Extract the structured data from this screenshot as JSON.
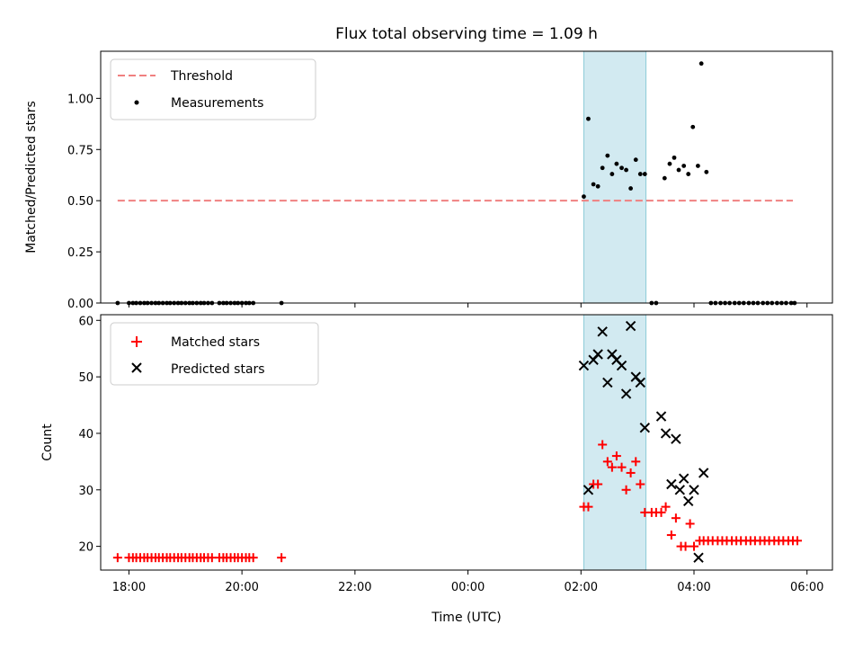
{
  "chart_data": [
    {
      "type": "scatter",
      "title": "Flux total observing time = 1.09 h",
      "xlabel": "",
      "ylabel": "Matched/Predicted stars",
      "x_unit": "hours since 17:00 UTC",
      "xlim": [
        0.5,
        13.45
      ],
      "ylim": [
        0,
        1.23
      ],
      "yticks": [
        0.0,
        0.25,
        0.5,
        0.75,
        1.0
      ],
      "ytick_labels": [
        "0.00",
        "0.25",
        "0.50",
        "0.75",
        "1.00"
      ],
      "grid": false,
      "legend": {
        "placement": "top-left",
        "entries": [
          "Threshold",
          "Measurements"
        ]
      },
      "shaded_span": {
        "x_start": 9.05,
        "x_end": 10.15,
        "color": "#add8e6"
      },
      "threshold": {
        "name": "Threshold",
        "y": 0.5,
        "x_start": 0.8,
        "x_end": 12.75,
        "color": "#f08080"
      },
      "series": [
        {
          "name": "Measurements",
          "color": "#000000",
          "points": [
            [
              0.8,
              0
            ],
            [
              1.0,
              0
            ],
            [
              1.07,
              0
            ],
            [
              1.13,
              0
            ],
            [
              1.2,
              0
            ],
            [
              1.27,
              0
            ],
            [
              1.33,
              0
            ],
            [
              1.4,
              0
            ],
            [
              1.47,
              0
            ],
            [
              1.53,
              0
            ],
            [
              1.6,
              0
            ],
            [
              1.67,
              0
            ],
            [
              1.73,
              0
            ],
            [
              1.8,
              0
            ],
            [
              1.87,
              0
            ],
            [
              1.93,
              0
            ],
            [
              2.0,
              0
            ],
            [
              2.07,
              0
            ],
            [
              2.13,
              0
            ],
            [
              2.2,
              0
            ],
            [
              2.27,
              0
            ],
            [
              2.33,
              0
            ],
            [
              2.4,
              0
            ],
            [
              2.47,
              0
            ],
            [
              2.6,
              0
            ],
            [
              2.67,
              0
            ],
            [
              2.73,
              0
            ],
            [
              2.8,
              0
            ],
            [
              2.87,
              0
            ],
            [
              2.93,
              0
            ],
            [
              3.0,
              0
            ],
            [
              3.07,
              0
            ],
            [
              3.13,
              0
            ],
            [
              3.2,
              0
            ],
            [
              3.7,
              0
            ],
            [
              9.05,
              0.52
            ],
            [
              9.13,
              0.9
            ],
            [
              9.22,
              0.58
            ],
            [
              9.3,
              0.57
            ],
            [
              9.38,
              0.66
            ],
            [
              9.47,
              0.72
            ],
            [
              9.55,
              0.63
            ],
            [
              9.63,
              0.68
            ],
            [
              9.72,
              0.66
            ],
            [
              9.8,
              0.65
            ],
            [
              9.88,
              0.56
            ],
            [
              9.97,
              0.7
            ],
            [
              10.05,
              0.63
            ],
            [
              10.13,
              0.63
            ],
            [
              10.25,
              0
            ],
            [
              10.33,
              0
            ],
            [
              10.48,
              0.61
            ],
            [
              10.57,
              0.68
            ],
            [
              10.65,
              0.71
            ],
            [
              10.73,
              0.65
            ],
            [
              10.82,
              0.67
            ],
            [
              10.9,
              0.63
            ],
            [
              10.98,
              0.86
            ],
            [
              11.07,
              0.67
            ],
            [
              11.13,
              1.17
            ],
            [
              11.22,
              0.64
            ],
            [
              11.3,
              0
            ],
            [
              11.38,
              0
            ],
            [
              11.47,
              0
            ],
            [
              11.55,
              0
            ],
            [
              11.63,
              0
            ],
            [
              11.72,
              0
            ],
            [
              11.8,
              0
            ],
            [
              11.88,
              0
            ],
            [
              11.97,
              0
            ],
            [
              12.05,
              0
            ],
            [
              12.13,
              0
            ],
            [
              12.22,
              0
            ],
            [
              12.3,
              0
            ],
            [
              12.38,
              0
            ],
            [
              12.47,
              0
            ],
            [
              12.55,
              0
            ],
            [
              12.63,
              0
            ],
            [
              12.72,
              0
            ],
            [
              12.78,
              0
            ]
          ]
        }
      ]
    },
    {
      "type": "scatter",
      "title": "",
      "xlabel": "Time (UTC)",
      "ylabel": "Count",
      "x_unit": "hours since 17:00 UTC",
      "xlim": [
        0.5,
        13.45
      ],
      "ylim": [
        15.8,
        61
      ],
      "yticks": [
        20,
        30,
        40,
        50,
        60
      ],
      "ytick_labels": [
        "20",
        "30",
        "40",
        "50",
        "60"
      ],
      "xticks": [
        1,
        3,
        5,
        7,
        9,
        11,
        13
      ],
      "xtick_labels": [
        "18:00",
        "20:00",
        "22:00",
        "00:00",
        "02:00",
        "04:00",
        "06:00"
      ],
      "grid": false,
      "legend": {
        "placement": "top-left",
        "entries": [
          "Matched stars",
          "Predicted stars"
        ]
      },
      "shaded_span": {
        "x_start": 9.05,
        "x_end": 10.15,
        "color": "#add8e6"
      },
      "series": [
        {
          "name": "Matched stars",
          "color": "#ff0000",
          "marker": "plus",
          "points": [
            [
              0.8,
              18
            ],
            [
              1.0,
              18
            ],
            [
              1.07,
              18
            ],
            [
              1.13,
              18
            ],
            [
              1.2,
              18
            ],
            [
              1.27,
              18
            ],
            [
              1.33,
              18
            ],
            [
              1.4,
              18
            ],
            [
              1.47,
              18
            ],
            [
              1.53,
              18
            ],
            [
              1.6,
              18
            ],
            [
              1.67,
              18
            ],
            [
              1.73,
              18
            ],
            [
              1.8,
              18
            ],
            [
              1.87,
              18
            ],
            [
              1.93,
              18
            ],
            [
              2.0,
              18
            ],
            [
              2.07,
              18
            ],
            [
              2.13,
              18
            ],
            [
              2.2,
              18
            ],
            [
              2.27,
              18
            ],
            [
              2.33,
              18
            ],
            [
              2.4,
              18
            ],
            [
              2.47,
              18
            ],
            [
              2.6,
              18
            ],
            [
              2.67,
              18
            ],
            [
              2.73,
              18
            ],
            [
              2.8,
              18
            ],
            [
              2.87,
              18
            ],
            [
              2.93,
              18
            ],
            [
              3.0,
              18
            ],
            [
              3.07,
              18
            ],
            [
              3.13,
              18
            ],
            [
              3.2,
              18
            ],
            [
              3.7,
              18
            ],
            [
              9.05,
              27
            ],
            [
              9.13,
              27
            ],
            [
              9.22,
              31
            ],
            [
              9.3,
              31
            ],
            [
              9.38,
              38
            ],
            [
              9.47,
              35
            ],
            [
              9.55,
              34
            ],
            [
              9.63,
              36
            ],
            [
              9.72,
              34
            ],
            [
              9.8,
              30
            ],
            [
              9.88,
              33
            ],
            [
              9.97,
              35
            ],
            [
              10.05,
              31
            ],
            [
              10.13,
              26
            ],
            [
              10.25,
              26
            ],
            [
              10.33,
              26
            ],
            [
              10.42,
              26
            ],
            [
              10.5,
              27
            ],
            [
              10.6,
              22
            ],
            [
              10.68,
              25
            ],
            [
              10.77,
              20
            ],
            [
              10.85,
              20
            ],
            [
              10.93,
              24
            ],
            [
              11.0,
              20
            ],
            [
              11.1,
              21
            ],
            [
              11.17,
              21
            ],
            [
              11.25,
              21
            ],
            [
              11.33,
              21
            ],
            [
              11.42,
              21
            ],
            [
              11.5,
              21
            ],
            [
              11.58,
              21
            ],
            [
              11.67,
              21
            ],
            [
              11.75,
              21
            ],
            [
              11.83,
              21
            ],
            [
              11.92,
              21
            ],
            [
              12.0,
              21
            ],
            [
              12.08,
              21
            ],
            [
              12.17,
              21
            ],
            [
              12.25,
              21
            ],
            [
              12.33,
              21
            ],
            [
              12.42,
              21
            ],
            [
              12.5,
              21
            ],
            [
              12.58,
              21
            ],
            [
              12.67,
              21
            ],
            [
              12.75,
              21
            ],
            [
              12.83,
              21
            ]
          ]
        },
        {
          "name": "Predicted stars",
          "color": "#000000",
          "marker": "x",
          "points": [
            [
              9.05,
              52
            ],
            [
              9.13,
              30
            ],
            [
              9.22,
              53
            ],
            [
              9.3,
              54
            ],
            [
              9.38,
              58
            ],
            [
              9.47,
              49
            ],
            [
              9.55,
              54
            ],
            [
              9.63,
              53
            ],
            [
              9.72,
              52
            ],
            [
              9.8,
              47
            ],
            [
              9.88,
              59
            ],
            [
              9.97,
              50
            ],
            [
              10.05,
              49
            ],
            [
              10.13,
              41
            ],
            [
              10.42,
              43
            ],
            [
              10.5,
              40
            ],
            [
              10.6,
              31
            ],
            [
              10.68,
              39
            ],
            [
              10.75,
              30
            ],
            [
              10.82,
              32
            ],
            [
              10.9,
              28
            ],
            [
              11.0,
              30
            ],
            [
              11.08,
              18
            ],
            [
              11.17,
              33
            ]
          ]
        }
      ]
    }
  ]
}
